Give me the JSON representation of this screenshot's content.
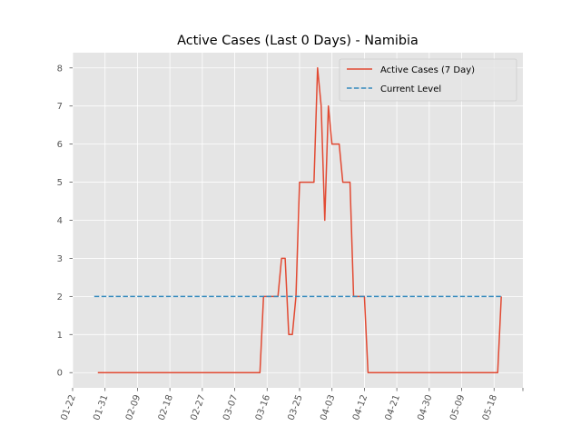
{
  "chart_data": {
    "type": "line",
    "title": "Active Cases (Last 0 Days) - Namibia",
    "xlabel": "",
    "ylabel": "",
    "ylim": [
      -0.4,
      8.4
    ],
    "xlim": [
      "2020-01-22",
      "2020-05-26"
    ],
    "x_ticks": [
      "01-22",
      "01-31",
      "02-09",
      "02-18",
      "02-27",
      "03-07",
      "03-16",
      "03-25",
      "04-03",
      "04-12",
      "04-21",
      "04-30",
      "05-09",
      "05-18"
    ],
    "y_ticks": [
      0,
      1,
      2,
      3,
      4,
      5,
      6,
      7,
      8
    ],
    "grid": true,
    "legend_position": "top-right",
    "colors": {
      "background": "#e5e5e5",
      "grid": "#ffffff",
      "active": "#e24a33",
      "current": "#348abd"
    },
    "series": [
      {
        "name": "Active Cases (7 Day)",
        "style": "solid",
        "points": [
          [
            "2020-01-29",
            0
          ],
          [
            "2020-03-14",
            0
          ],
          [
            "2020-03-15",
            2
          ],
          [
            "2020-03-19",
            2
          ],
          [
            "2020-03-20",
            3
          ],
          [
            "2020-03-21",
            3
          ],
          [
            "2020-03-22",
            1
          ],
          [
            "2020-03-23",
            1
          ],
          [
            "2020-03-24",
            2
          ],
          [
            "2020-03-25",
            5
          ],
          [
            "2020-03-29",
            5
          ],
          [
            "2020-03-30",
            8
          ],
          [
            "2020-03-31",
            7
          ],
          [
            "2020-04-01",
            4
          ],
          [
            "2020-04-02",
            7
          ],
          [
            "2020-04-03",
            6
          ],
          [
            "2020-04-05",
            6
          ],
          [
            "2020-04-06",
            5
          ],
          [
            "2020-04-08",
            5
          ],
          [
            "2020-04-09",
            2
          ],
          [
            "2020-04-12",
            2
          ],
          [
            "2020-04-13",
            0
          ],
          [
            "2020-05-19",
            0
          ],
          [
            "2020-05-20",
            2
          ]
        ]
      },
      {
        "name": "Current Level",
        "style": "dashed",
        "points": [
          [
            "2020-01-28",
            2
          ],
          [
            "2020-05-20",
            2
          ]
        ]
      }
    ]
  }
}
